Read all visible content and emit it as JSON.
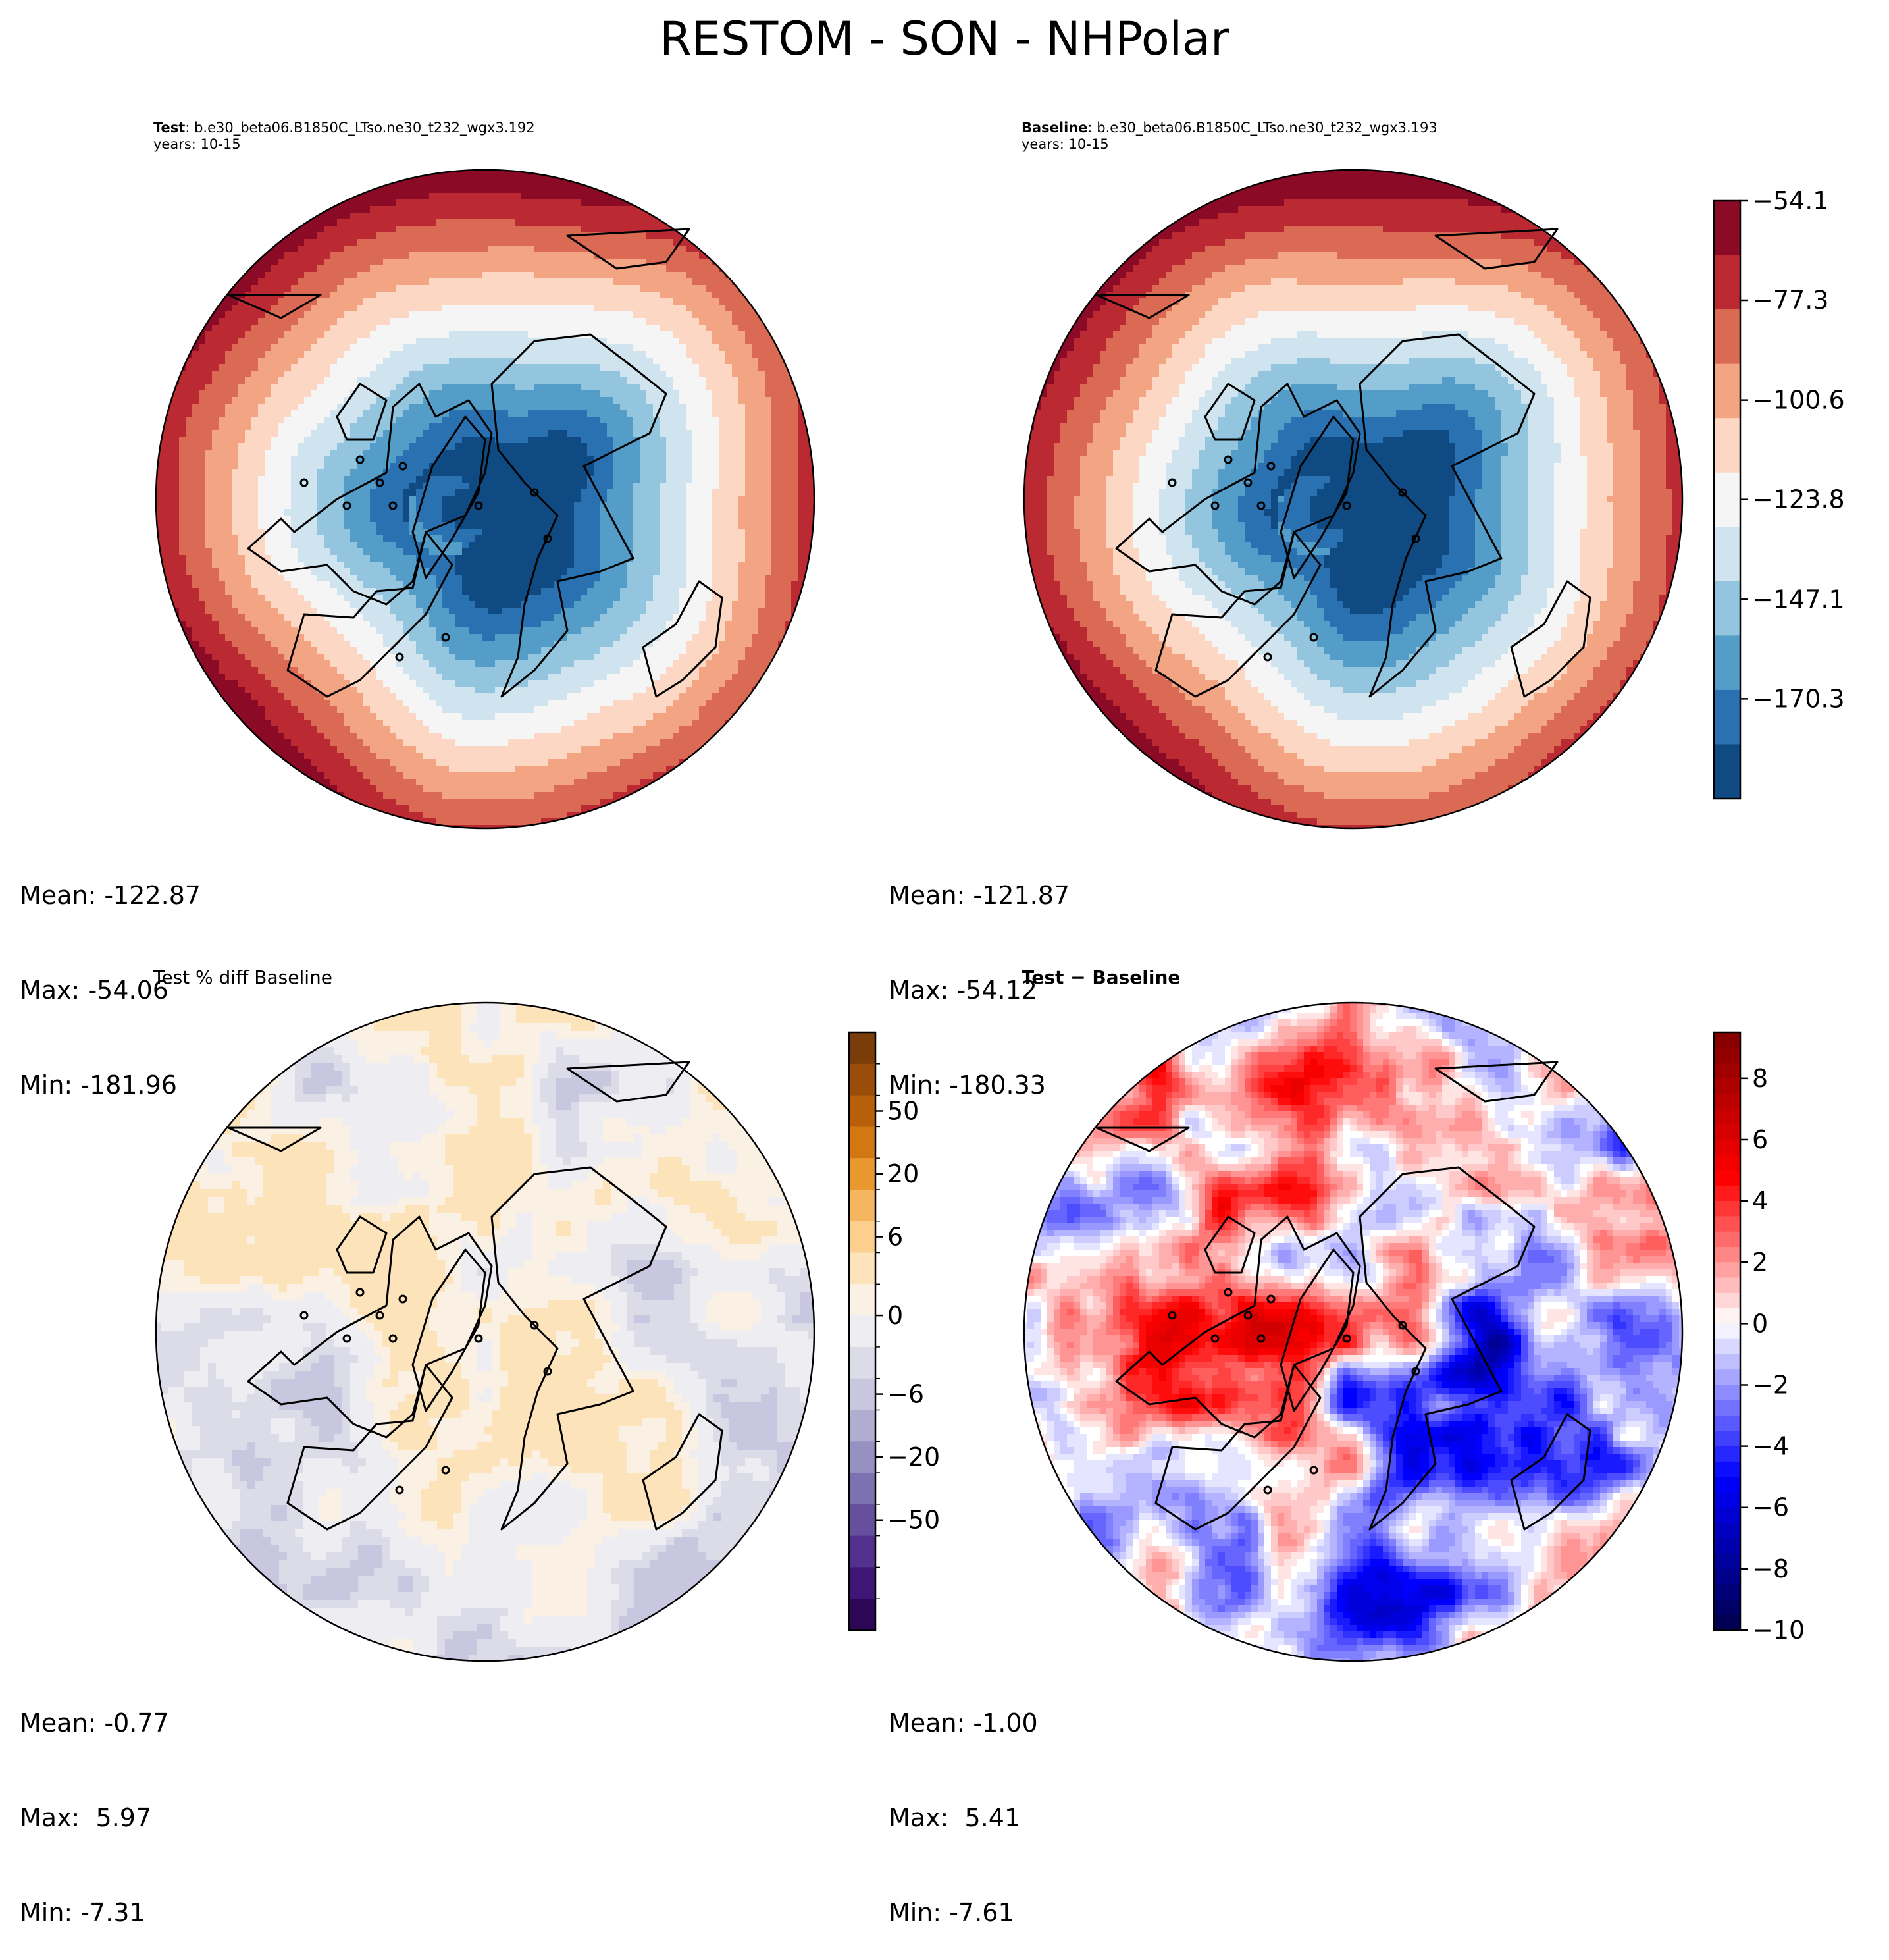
{
  "figure": {
    "title": "RESTOM - SON - NHPolar"
  },
  "panels": {
    "test": {
      "label": "Test",
      "case": ": b.e30_beta06.B1850C_LTso.ne30_t232_wgx3.192",
      "years": "years: 10-15",
      "stats": {
        "mean": "Mean: -122.87",
        "max": "Max: -54.06",
        "min": "Min: -181.96"
      }
    },
    "baseline": {
      "label": "Baseline",
      "case": ": b.e30_beta06.B1850C_LTso.ne30_t232_wgx3.193",
      "years": "years: 10-15",
      "stats": {
        "mean": "Mean: -121.87",
        "max": "Max: -54.12",
        "min": "Min: -180.33"
      }
    },
    "pct_diff": {
      "title": "Test % diff Baseline",
      "stats": {
        "mean": "Mean: -0.77",
        "max": "Max:  5.97",
        "min": "Min: -7.31"
      }
    },
    "diff": {
      "title": "Test − Baseline",
      "stats": {
        "mean": "Mean: -1.00",
        "max": "Max:  5.41",
        "min": "Min: -7.61"
      }
    }
  },
  "colors": {
    "rdbu": [
      "#0f4a82",
      "#2a71b2",
      "#539dc8",
      "#94c5df",
      "#d0e4ef",
      "#f5f5f5",
      "#fbd7c4",
      "#f3a483",
      "#db6a55",
      "#bb2a33",
      "#8b0a26"
    ],
    "coast": "#000000"
  },
  "chart_data": [
    {
      "type": "contour-map",
      "name": "Test",
      "projection": "NorthPolarStereo",
      "levels": [
        -193.6,
        -170.3,
        -158.7,
        -147.1,
        -135.4,
        -123.8,
        -112.2,
        -100.6,
        -88.9,
        -77.3,
        -65.7,
        -54.1
      ],
      "field": "RESTOM",
      "mean": -122.87,
      "max": -54.06,
      "min": -181.96
    },
    {
      "type": "contour-map",
      "name": "Baseline",
      "projection": "NorthPolarStereo",
      "levels": [
        -193.6,
        -170.3,
        -158.7,
        -147.1,
        -135.4,
        -123.8,
        -112.2,
        -100.6,
        -88.9,
        -77.3,
        -65.7,
        -54.1
      ],
      "field": "RESTOM",
      "mean": -121.87,
      "max": -54.12,
      "min": -180.33,
      "colorbar": {
        "range": [
          -193.6,
          -54.1
        ],
        "ticks": [
          -54.1,
          -77.3,
          -100.6,
          -123.8,
          -147.1,
          -170.3
        ],
        "tick_labels": [
          "−54.1",
          "−77.3",
          "−100.6",
          "−123.8",
          "−147.1",
          "−170.3"
        ],
        "cmap": "RdBu_r"
      }
    },
    {
      "type": "contour-map",
      "name": "Test % diff Baseline",
      "projection": "NorthPolarStereo",
      "mean": -0.77,
      "max": 5.97,
      "min": -7.31,
      "colorbar": {
        "ticks": [
          50,
          20,
          6,
          0,
          -6,
          -20,
          -50
        ],
        "tick_labels": [
          "50",
          "20",
          "6",
          "0",
          "−6",
          "−20",
          "−50"
        ],
        "colors_top_to_bottom": [
          "#7a3d0a",
          "#9a4d08",
          "#b75f0a",
          "#d27813",
          "#e99830",
          "#f6b660",
          "#fdcf8f",
          "#fde3ba",
          "#faf0e3",
          "#eeeef2",
          "#dcdce9",
          "#c8c7df",
          "#b0add1",
          "#9691c1",
          "#7d72b1",
          "#66509e",
          "#52318d",
          "#3f1675",
          "#2d0657"
        ],
        "cmap": "PuOr_r"
      }
    },
    {
      "type": "contour-map",
      "name": "Test − Baseline",
      "projection": "NorthPolarStereo",
      "mean": -1.0,
      "max": 5.41,
      "min": -7.61,
      "colorbar": {
        "range": [
          -10,
          9.5
        ],
        "ticks": [
          8,
          6,
          4,
          2,
          0,
          -2,
          -4,
          -6,
          -8,
          -10
        ],
        "tick_labels": [
          "8",
          "6",
          "4",
          "2",
          "0",
          "−2",
          "−4",
          "−6",
          "−8",
          "−10"
        ],
        "cmap": "seismic"
      }
    }
  ]
}
